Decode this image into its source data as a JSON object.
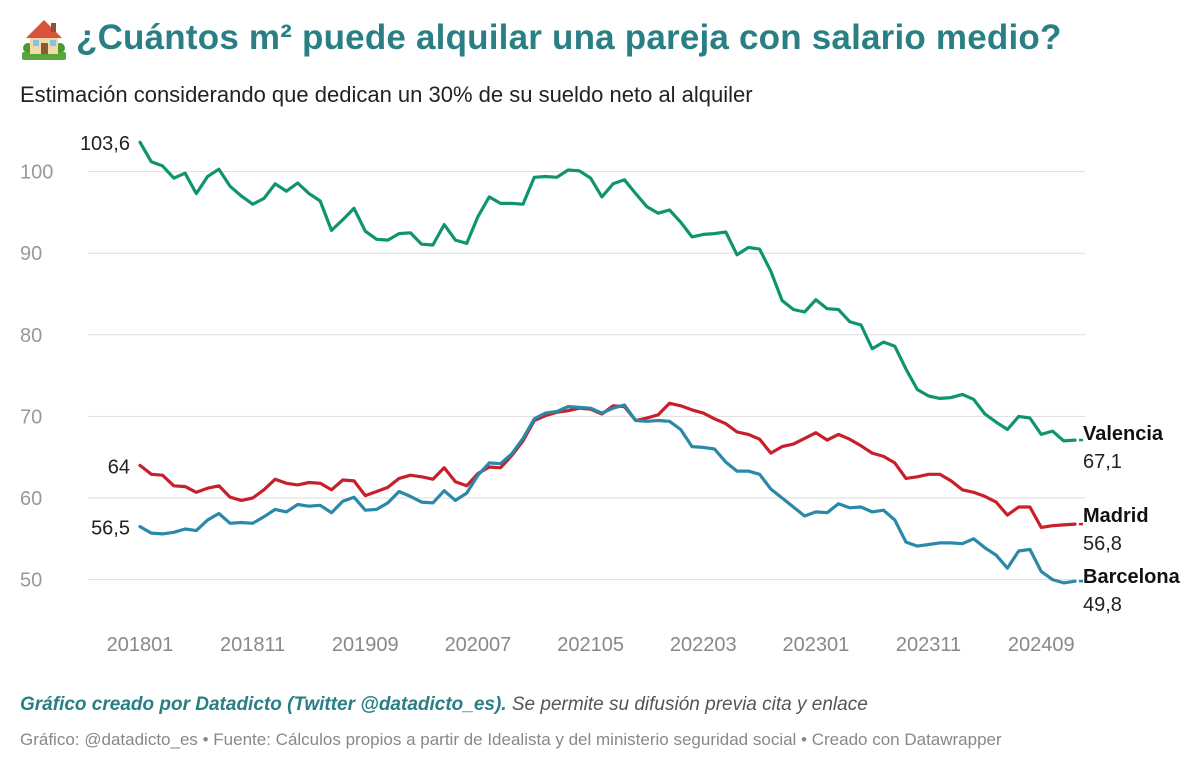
{
  "header": {
    "icon": "house-with-garden-icon",
    "title": "¿Cuántos m² puede alquilar una pareja con salario medio?",
    "subtitle": "Estimación considerando que dedican un 30% de su sueldo neto al alquiler"
  },
  "footer": {
    "credit_bold": "Gráfico creado por Datadicto (Twitter @datadicto_es).",
    "credit_rest": " Se permite su difusión previa cita y enlace",
    "source": "Gráfico: @datadicto_es • Fuente: Cálculos propios a partir de Idealista y del ministerio seguridad social • Creado con Datawrapper"
  },
  "colors": {
    "title": "#2a7f84",
    "valencia": "#0f9470",
    "madrid": "#c8202a",
    "barcelona": "#2a88a8",
    "grid": "#dddddd"
  },
  "chart_data": {
    "type": "line",
    "x_ticks": [
      "201801",
      "201811",
      "201909",
      "202007",
      "202105",
      "202203",
      "202301",
      "202311",
      "202409"
    ],
    "y_ticks": [
      50,
      60,
      70,
      80,
      90,
      100
    ],
    "ylim": [
      45,
      106
    ],
    "x_start": "201801",
    "x_end": "202412",
    "grid": true,
    "series": [
      {
        "name": "Valencia",
        "color": "#0f9470",
        "start_label": "103,6",
        "end_label": "67,1",
        "values": [
          103.6,
          101.2,
          100.7,
          99.2,
          99.8,
          97.3,
          99.4,
          100.3,
          98.2,
          97.0,
          96.0,
          96.7,
          98.5,
          97.6,
          98.6,
          97.3,
          96.4,
          92.8,
          94.1,
          95.5,
          92.7,
          91.7,
          91.6,
          92.4,
          92.5,
          91.1,
          91.0,
          93.5,
          91.6,
          91.2,
          94.5,
          96.9,
          96.1,
          96.1,
          96.0,
          99.3,
          99.4,
          99.3,
          100.2,
          100.1,
          99.2,
          96.9,
          98.5,
          99.0,
          97.3,
          95.7,
          94.9,
          95.3,
          93.8,
          92.0,
          92.3,
          92.4,
          92.6,
          89.8,
          90.7,
          90.5,
          87.8,
          84.2,
          83.1,
          82.8,
          84.3,
          83.2,
          83.1,
          81.6,
          81.2,
          78.3,
          79.1,
          78.6,
          75.8,
          73.3,
          72.5,
          72.2,
          72.3,
          72.7,
          72.1,
          70.3,
          69.3,
          68.4,
          70.0,
          69.8,
          67.8,
          68.2,
          67.0,
          67.1
        ]
      },
      {
        "name": "Madrid",
        "color": "#c8202a",
        "start_label": "64",
        "end_label": "56,8",
        "values": [
          64.0,
          62.9,
          62.8,
          61.5,
          61.4,
          60.7,
          61.2,
          61.5,
          60.1,
          59.7,
          60.0,
          61.0,
          62.3,
          61.8,
          61.6,
          61.9,
          61.8,
          61.0,
          62.2,
          62.1,
          60.3,
          60.8,
          61.3,
          62.4,
          62.8,
          62.6,
          62.3,
          63.7,
          62.0,
          61.5,
          63.0,
          63.8,
          63.7,
          65.2,
          67.0,
          69.5,
          70.1,
          70.5,
          70.7,
          71.0,
          70.9,
          70.3,
          71.3,
          71.2,
          69.5,
          69.8,
          70.2,
          71.6,
          71.3,
          70.8,
          70.4,
          69.7,
          69.1,
          68.1,
          67.8,
          67.2,
          65.5,
          66.3,
          66.6,
          67.3,
          68.0,
          67.1,
          67.8,
          67.2,
          66.4,
          65.5,
          65.1,
          64.3,
          62.4,
          62.6,
          62.9,
          62.9,
          62.1,
          61.0,
          60.7,
          60.2,
          59.5,
          57.9,
          58.9,
          58.9,
          56.4,
          56.6,
          56.7,
          56.8
        ]
      },
      {
        "name": "Barcelona",
        "color": "#2a88a8",
        "start_label": "56,5",
        "end_label": "49,8",
        "values": [
          56.5,
          55.7,
          55.6,
          55.8,
          56.2,
          56.0,
          57.3,
          58.1,
          56.9,
          57.0,
          56.9,
          57.7,
          58.6,
          58.3,
          59.2,
          59.0,
          59.1,
          58.2,
          59.6,
          60.1,
          58.5,
          58.6,
          59.4,
          60.8,
          60.2,
          59.5,
          59.4,
          60.9,
          59.7,
          60.6,
          62.8,
          64.3,
          64.2,
          65.4,
          67.3,
          69.7,
          70.4,
          70.6,
          71.2,
          71.1,
          71.0,
          70.4,
          71.0,
          71.4,
          69.5,
          69.4,
          69.5,
          69.4,
          68.4,
          66.3,
          66.2,
          66.0,
          64.4,
          63.3,
          63.3,
          62.9,
          61.1,
          60.0,
          58.9,
          57.8,
          58.3,
          58.2,
          59.3,
          58.8,
          58.9,
          58.3,
          58.5,
          57.3,
          54.6,
          54.1,
          54.3,
          54.5,
          54.5,
          54.4,
          55.0,
          53.9,
          53.0,
          51.4,
          53.5,
          53.7,
          51.0,
          50.0,
          49.6,
          49.8
        ]
      }
    ]
  }
}
